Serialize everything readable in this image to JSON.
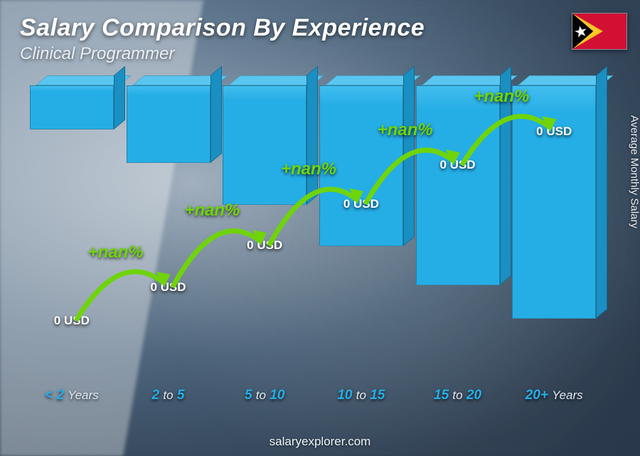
{
  "title": "Salary Comparison By Experience",
  "subtitle": "Clinical Programmer",
  "yAxisLabel": "Average Monthly Salary",
  "footer": "salaryexplorer.com",
  "flag": {
    "country": "Timor-Leste",
    "bg": "#d21034",
    "tri1": "#ffc726",
    "tri2": "#000000",
    "star": "#ffffff"
  },
  "chart": {
    "type": "bar",
    "barColor": "#25aee6",
    "barTop": "#5ac6ef",
    "barSide": "#1a8fc2",
    "barTopShade": "#42bdee",
    "deltaColor": "#6fd40a",
    "background": "blurred-photo",
    "title_fontsize": 34,
    "subtitle_fontsize": 24,
    "value_fontsize": 17,
    "axis_fontsize": 19,
    "delta_fontsize": 24,
    "bars": [
      {
        "label_pre": "< 2",
        "label_post": "Years",
        "value": "0 USD",
        "height_pct": 16
      },
      {
        "label_pre": "2",
        "label_mid": "to",
        "label_post": "5",
        "value": "0 USD",
        "height_pct": 28,
        "delta": "+nan%"
      },
      {
        "label_pre": "5",
        "label_mid": "to",
        "label_post": "10",
        "value": "0 USD",
        "height_pct": 43,
        "delta": "+nan%"
      },
      {
        "label_pre": "10",
        "label_mid": "to",
        "label_post": "15",
        "value": "0 USD",
        "height_pct": 58,
        "delta": "+nan%"
      },
      {
        "label_pre": "15",
        "label_mid": "to",
        "label_post": "20",
        "value": "0 USD",
        "height_pct": 72,
        "delta": "+nan%"
      },
      {
        "label_pre": "20+",
        "label_post": "Years",
        "value": "0 USD",
        "height_pct": 84,
        "delta": "+nan%"
      }
    ]
  }
}
